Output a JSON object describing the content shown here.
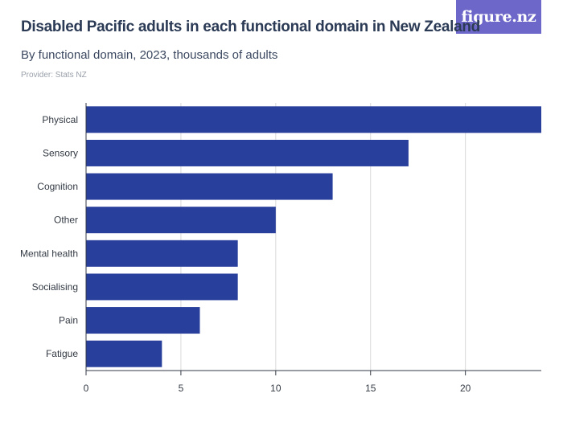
{
  "header": {
    "title": "Disabled Pacific adults in each functional domain in New Zealand",
    "subtitle": "By functional domain, 2023, thousands of adults",
    "provider": "Provider: Stats NZ",
    "logo_text": "figure.nz"
  },
  "colors": {
    "bar": "#283f9c",
    "logo_bg": "#6d67c9",
    "grid": "#d9d9d9",
    "axis": "#333a44"
  },
  "chart_data": {
    "type": "bar",
    "orientation": "horizontal",
    "title": "Disabled Pacific adults in each functional domain in New Zealand",
    "subtitle": "By functional domain, 2023, thousands of adults",
    "categories": [
      "Physical",
      "Sensory",
      "Cognition",
      "Other",
      "Mental health",
      "Socialising",
      "Pain",
      "Fatigue"
    ],
    "values": [
      24,
      17,
      13,
      10,
      8,
      8,
      6,
      4
    ],
    "xlim": [
      0,
      24
    ],
    "xticks": [
      0,
      5,
      10,
      15,
      20
    ],
    "xtick_labels": [
      "0",
      "5",
      "10",
      "15",
      "20"
    ],
    "grid": "vertical",
    "xlabel": "",
    "ylabel": ""
  }
}
